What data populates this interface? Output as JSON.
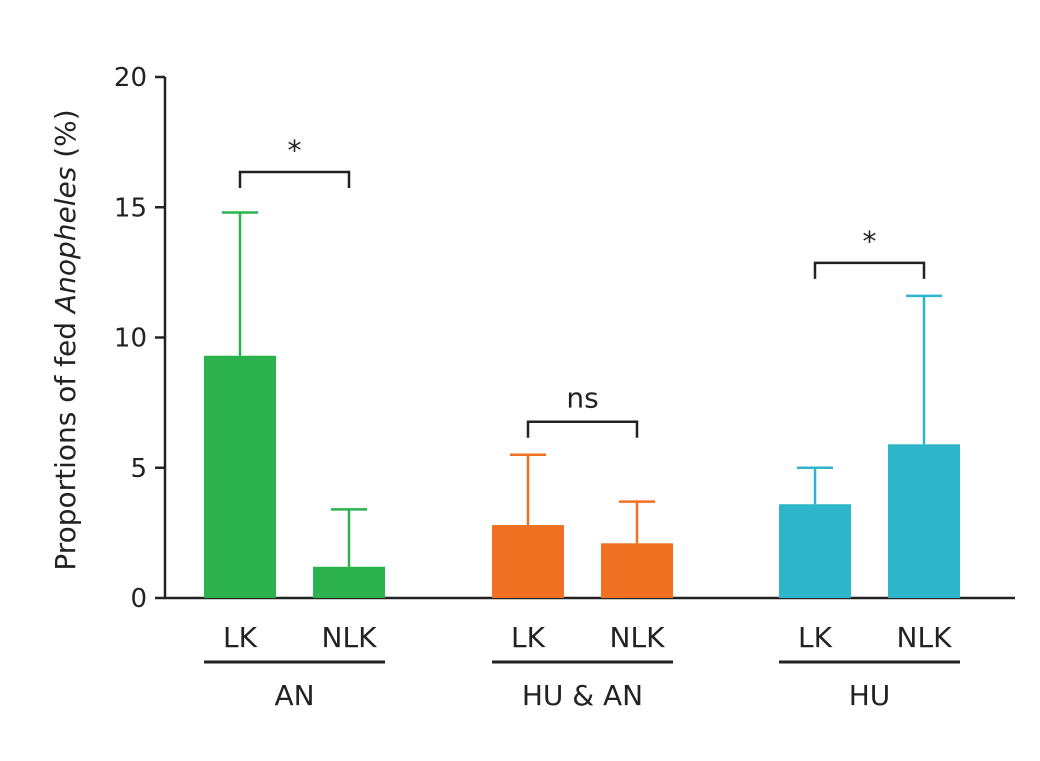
{
  "chart_data": {
    "type": "bar",
    "title": "",
    "ylabel_prefix": "Proportions of fed ",
    "ylabel_italic": "Anopheles",
    "ylabel_suffix": " (%)",
    "ylim": [
      0,
      20
    ],
    "yticks": [
      "0",
      "5",
      "10",
      "15",
      "20"
    ],
    "grid": false,
    "groups": [
      {
        "name": "AN",
        "color": "#2bb24c",
        "bracket": "*",
        "bars": [
          {
            "label": "LK",
            "value": 9.3,
            "error": 14.8
          },
          {
            "label": "NLK",
            "value": 1.2,
            "error": 3.4
          }
        ]
      },
      {
        "name": "HU & AN",
        "color": "#f07122",
        "bracket": "ns",
        "bars": [
          {
            "label": "LK",
            "value": 2.8,
            "error": 5.5
          },
          {
            "label": "NLK",
            "value": 2.1,
            "error": 3.7
          }
        ]
      },
      {
        "name": "HU",
        "color": "#2fb5c9",
        "bracket": "*",
        "bars": [
          {
            "label": "LK",
            "value": 3.6,
            "error": 5.0
          },
          {
            "label": "NLK",
            "value": 5.9,
            "error": 11.6
          }
        ]
      }
    ]
  }
}
